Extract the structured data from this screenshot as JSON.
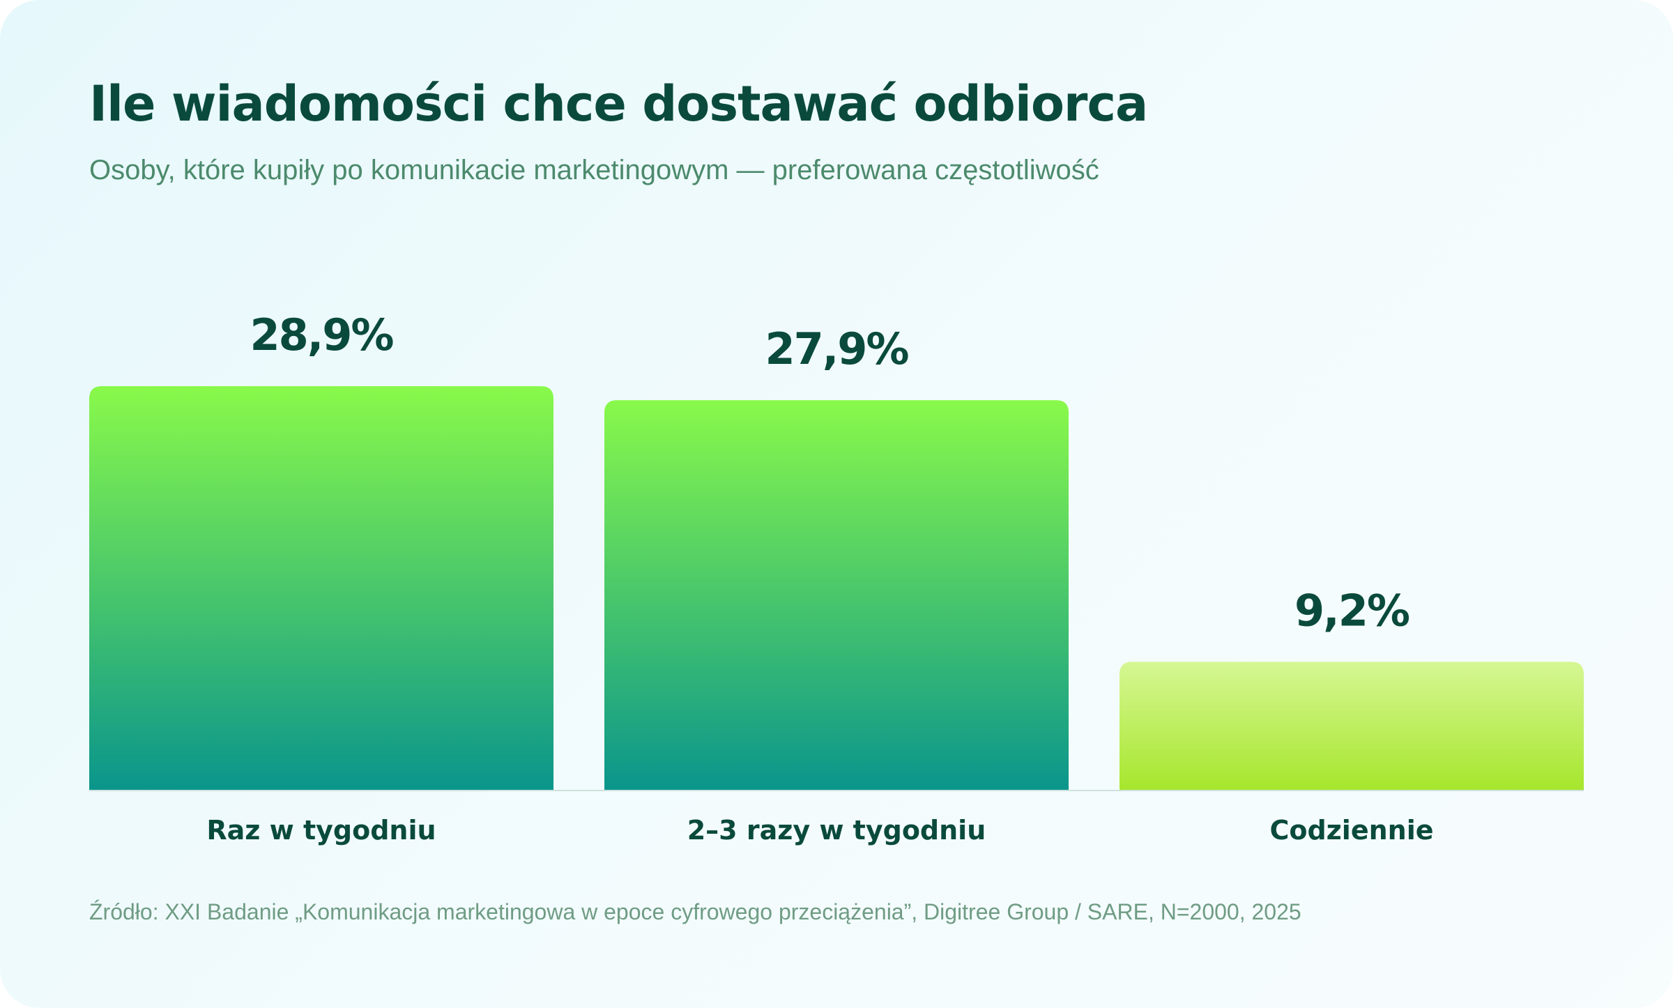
{
  "header": {
    "title": "Ile wiadomości chce dostawać odbiorca",
    "subtitle": "Osoby, które kupiły po komunikacie marketingowym — preferowana częstotliwość"
  },
  "footer": {
    "source": "Źródło: XXI Badanie „Komunikacja marketingowa w epoce cyfrowego przeciążenia”, Digitree Group / SARE, N=2000, 2025"
  },
  "colors": {
    "text_dark": "#0a4a3c",
    "bar_green_top": "#89f94a",
    "bar_green_bottom": "#0a958c",
    "bar_lime_top": "#d6f794",
    "bar_lime_bottom": "#a6e62c"
  },
  "chart_data": {
    "type": "bar",
    "categories": [
      "Raz w tygodniu",
      "2–3 razy w tygodniu",
      "Codziennie"
    ],
    "values": [
      28.9,
      27.9,
      9.2
    ],
    "value_labels": [
      "28,9%",
      "27,9%",
      "9,2%"
    ],
    "bar_styles": [
      "green",
      "green",
      "lime"
    ],
    "grid": false,
    "legend": "none"
  }
}
